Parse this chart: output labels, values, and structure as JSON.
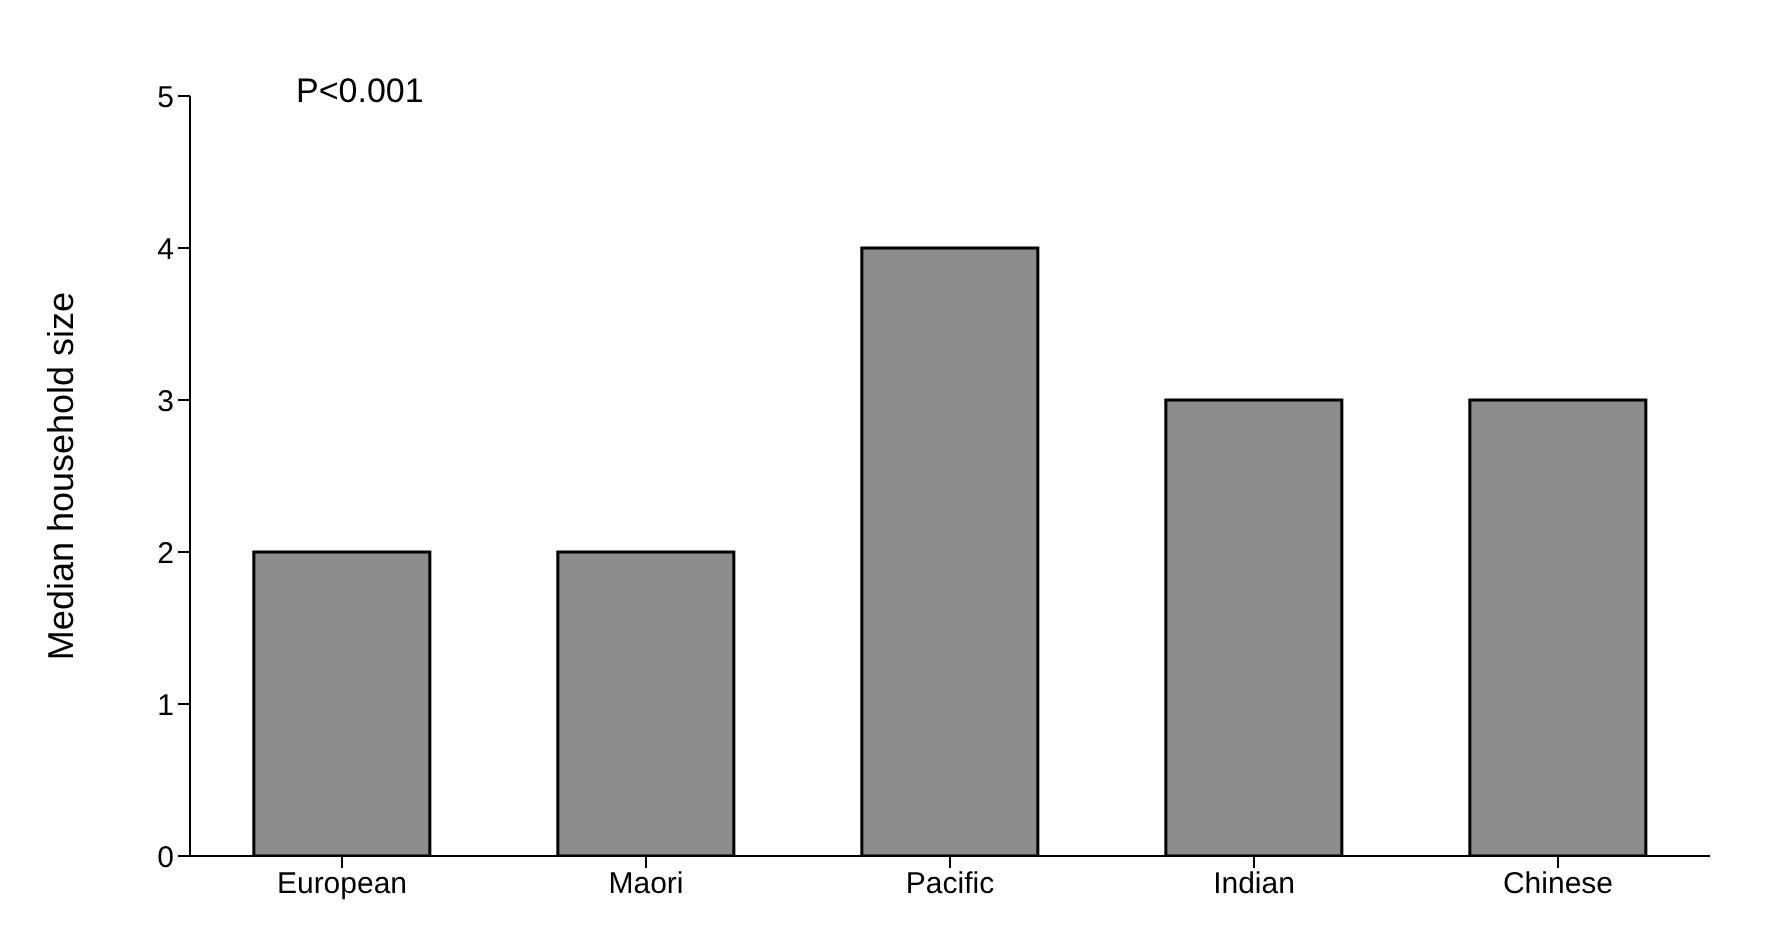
{
  "chart_data": {
    "type": "bar",
    "ylabel": "Median household size",
    "categories": [
      "European",
      "Maori",
      "Pacific",
      "Indian",
      "Chinese"
    ],
    "values": [
      2,
      2,
      4,
      3,
      3
    ],
    "color": "#8c8c8c",
    "ylim": [
      0,
      5
    ],
    "yticks": [
      0,
      1,
      2,
      3,
      4,
      5
    ],
    "grid": false,
    "annotations": [
      "P<0.001"
    ]
  }
}
